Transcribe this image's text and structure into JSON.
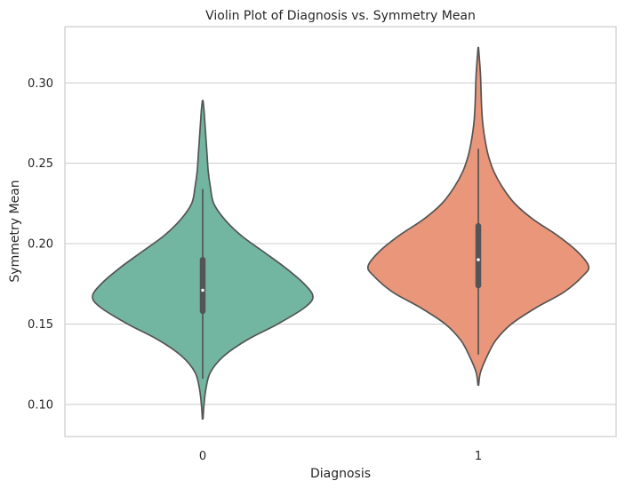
{
  "chart_data": {
    "type": "violin",
    "title": "Violin Plot of Diagnosis vs. Symmetry Mean",
    "xlabel": "Diagnosis",
    "ylabel": "Symmetry Mean",
    "categories": [
      "0",
      "1"
    ],
    "ylim": [
      0.08,
      0.335
    ],
    "yticks": [
      0.1,
      0.15,
      0.2,
      0.25,
      0.3
    ],
    "ytick_labels": [
      "0.10",
      "0.15",
      "0.20",
      "0.25",
      "0.30"
    ],
    "grid": "horizontal",
    "series": [
      {
        "category": "0",
        "color": "#72b6a1",
        "min": 0.091,
        "q1": 0.158,
        "median": 0.171,
        "q3": 0.19,
        "whisker_low": 0.116,
        "whisker_high": 0.234,
        "max": 0.289,
        "density_profile": [
          [
            0.091,
            0.003
          ],
          [
            0.1,
            0.012
          ],
          [
            0.11,
            0.03
          ],
          [
            0.12,
            0.07
          ],
          [
            0.13,
            0.19
          ],
          [
            0.14,
            0.4
          ],
          [
            0.15,
            0.68
          ],
          [
            0.16,
            0.92
          ],
          [
            0.167,
            1.0
          ],
          [
            0.175,
            0.92
          ],
          [
            0.185,
            0.75
          ],
          [
            0.195,
            0.55
          ],
          [
            0.205,
            0.35
          ],
          [
            0.215,
            0.2
          ],
          [
            0.225,
            0.1
          ],
          [
            0.235,
            0.07
          ],
          [
            0.245,
            0.05
          ],
          [
            0.255,
            0.04
          ],
          [
            0.265,
            0.03
          ],
          [
            0.275,
            0.02
          ],
          [
            0.283,
            0.012
          ],
          [
            0.289,
            0.003
          ]
        ]
      },
      {
        "category": "1",
        "color": "#e9967a",
        "min": 0.112,
        "q1": 0.174,
        "median": 0.19,
        "q3": 0.211,
        "whisker_low": 0.131,
        "whisker_high": 0.259,
        "max": 0.322,
        "density_profile": [
          [
            0.112,
            0.003
          ],
          [
            0.12,
            0.02
          ],
          [
            0.13,
            0.08
          ],
          [
            0.14,
            0.16
          ],
          [
            0.15,
            0.3
          ],
          [
            0.16,
            0.52
          ],
          [
            0.17,
            0.78
          ],
          [
            0.18,
            0.95
          ],
          [
            0.186,
            1.0
          ],
          [
            0.195,
            0.9
          ],
          [
            0.205,
            0.72
          ],
          [
            0.215,
            0.5
          ],
          [
            0.225,
            0.33
          ],
          [
            0.235,
            0.22
          ],
          [
            0.245,
            0.14
          ],
          [
            0.255,
            0.09
          ],
          [
            0.265,
            0.06
          ],
          [
            0.275,
            0.04
          ],
          [
            0.285,
            0.03
          ],
          [
            0.295,
            0.025
          ],
          [
            0.305,
            0.02
          ],
          [
            0.315,
            0.01
          ],
          [
            0.322,
            0.002
          ]
        ]
      }
    ]
  },
  "colors": {
    "box": "#545454",
    "outline": "#545454",
    "grid": "#cccccc",
    "frame": "#cccccc",
    "median_dot": "#ffffff"
  }
}
